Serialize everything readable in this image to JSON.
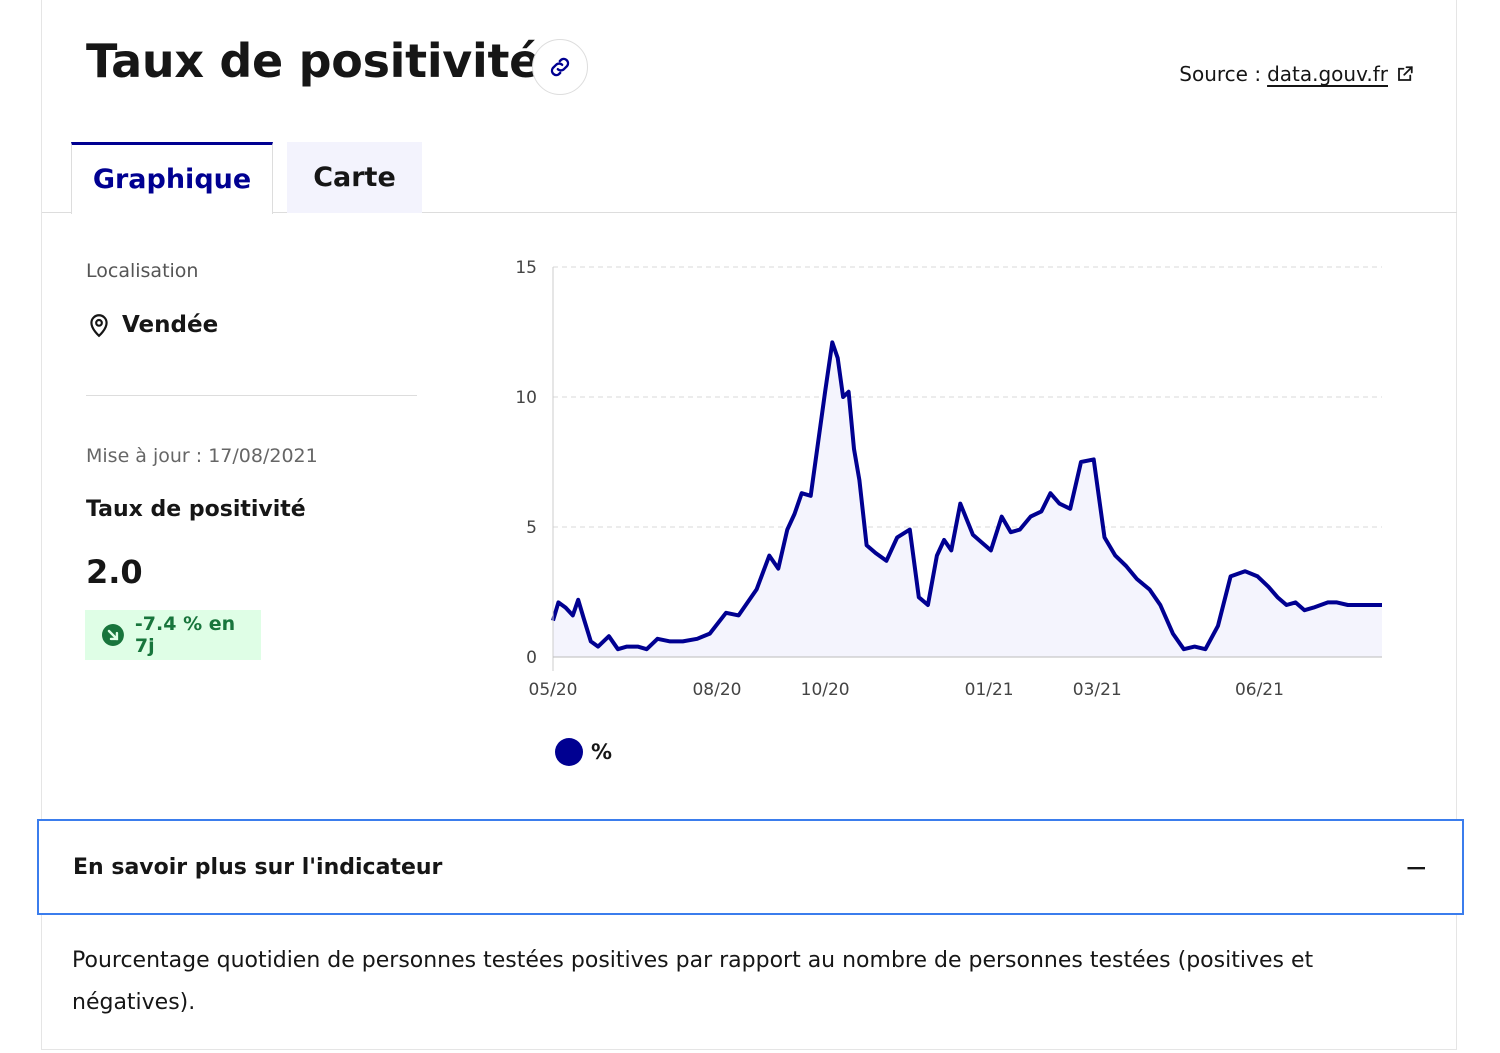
{
  "header": {
    "title": "Taux de positivité",
    "source_label": "Source :",
    "source_link": "data.gouv.fr"
  },
  "tabs": [
    {
      "label": "Graphique",
      "active": true
    },
    {
      "label": "Carte",
      "active": false
    }
  ],
  "sidebar": {
    "location_label": "Localisation",
    "location_value": "Vendée",
    "update": "Mise à jour : 17/08/2021",
    "indicator_name": "Taux de positivité",
    "indicator_value": "2.0",
    "trend": "-7.4 % en 7j"
  },
  "legend": {
    "label": "%"
  },
  "accordion": {
    "title": "En savoir plus sur l'indicateur",
    "toggle": "−",
    "description": "Pourcentage quotidien de personnes testées positives par rapport au nombre de personnes testées (positives et négatives)."
  },
  "colors": {
    "accent": "#000091",
    "badge_bg": "#dffee6",
    "badge_text": "#18753c",
    "focus": "#3b7ded",
    "tab_inactive_bg": "#f3f3fd"
  },
  "chart_data": {
    "type": "area",
    "x_ticks": [
      "05/20",
      "08/20",
      "10/20",
      "01/21",
      "03/21",
      "06/21"
    ],
    "y_ticks": [
      0,
      5,
      10,
      15
    ],
    "ylim": [
      0,
      15
    ],
    "grid": true,
    "legend_position": "bottom-left",
    "series": [
      {
        "name": "%",
        "color": "#000091",
        "x": [
          "2020-05-13",
          "2020-05-16",
          "2020-05-20",
          "2020-05-24",
          "2020-05-27",
          "2020-05-30",
          "2020-06-03",
          "2020-06-07",
          "2020-06-13",
          "2020-06-18",
          "2020-06-23",
          "2020-06-29",
          "2020-07-04",
          "2020-07-10",
          "2020-07-17",
          "2020-07-24",
          "2020-08-01",
          "2020-08-08",
          "2020-08-17",
          "2020-08-24",
          "2020-08-29",
          "2020-09-03",
          "2020-09-10",
          "2020-09-15",
          "2020-09-20",
          "2020-09-24",
          "2020-09-28",
          "2020-10-03",
          "2020-10-07",
          "2020-10-11",
          "2020-10-15",
          "2020-10-18",
          "2020-10-21",
          "2020-10-24",
          "2020-10-27",
          "2020-10-30",
          "2020-11-03",
          "2020-11-08",
          "2020-11-14",
          "2020-11-20",
          "2020-11-27",
          "2020-12-02",
          "2020-12-07",
          "2020-12-12",
          "2020-12-16",
          "2020-12-20",
          "2020-12-25",
          "2021-01-01",
          "2021-01-06",
          "2021-01-11",
          "2021-01-17",
          "2021-01-22",
          "2021-01-27",
          "2021-02-02",
          "2021-02-08",
          "2021-02-13",
          "2021-02-18",
          "2021-02-24",
          "2021-03-02",
          "2021-03-09",
          "2021-03-15",
          "2021-03-21",
          "2021-03-27",
          "2021-04-02",
          "2021-04-09",
          "2021-04-15",
          "2021-04-22",
          "2021-04-28",
          "2021-05-04",
          "2021-05-10",
          "2021-05-17",
          "2021-05-24",
          "2021-06-01",
          "2021-06-08",
          "2021-06-14",
          "2021-06-19",
          "2021-06-24",
          "2021-06-29",
          "2021-07-04",
          "2021-07-09",
          "2021-07-13",
          "2021-07-17",
          "2021-07-22",
          "2021-07-28",
          "2021-08-03",
          "2021-08-10",
          "2021-08-16"
        ],
        "values": [
          1.4,
          2.1,
          1.9,
          1.6,
          2.2,
          1.5,
          0.6,
          0.4,
          0.8,
          0.3,
          0.4,
          0.4,
          0.3,
          0.7,
          0.6,
          0.6,
          0.7,
          0.9,
          1.7,
          1.6,
          2.1,
          2.6,
          3.9,
          3.4,
          4.9,
          5.5,
          6.3,
          6.2,
          8.2,
          10.2,
          12.1,
          11.5,
          10.0,
          10.2,
          8.0,
          6.8,
          4.3,
          4.0,
          3.7,
          4.6,
          4.9,
          2.3,
          2.0,
          3.9,
          4.5,
          4.1,
          5.9,
          4.7,
          4.4,
          4.1,
          5.4,
          4.8,
          4.9,
          5.4,
          5.6,
          6.3,
          5.9,
          5.7,
          7.5,
          7.6,
          4.6,
          3.9,
          3.5,
          3.0,
          2.6,
          2.0,
          0.9,
          0.3,
          0.4,
          0.3,
          1.2,
          3.1,
          3.3,
          3.1,
          2.7,
          2.3,
          2.0,
          2.1,
          1.8,
          1.9,
          2.0,
          2.1,
          2.1,
          2.0,
          2.0,
          2.0,
          2.0
        ]
      }
    ]
  }
}
